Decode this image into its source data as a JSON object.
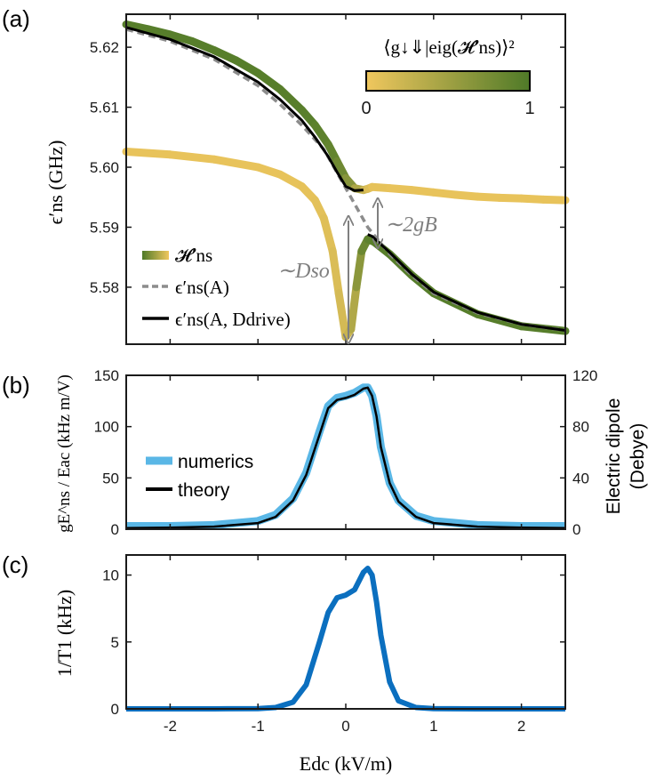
{
  "chart_data": [
    {
      "type": "line",
      "panel_label": "(a)",
      "xlim": [
        -2.5,
        2.5
      ],
      "ylim": [
        5.5705,
        5.6255
      ],
      "xticks": [
        -2,
        -1,
        0,
        1,
        2
      ],
      "xtick_labels": [
        "",
        "",
        "",
        "",
        ""
      ],
      "yticks": [
        5.58,
        5.59,
        5.6,
        5.61,
        5.62
      ],
      "ytick_labels": [
        "5.58",
        "5.59",
        "5.60",
        "5.61",
        "5.62"
      ],
      "ylabel": "ϵ′ns (GHz)",
      "colorbar": {
        "title": "⟨g↓⇓|eig(𝓗′ns)⟩²",
        "min_label": "0",
        "max_label": "1",
        "color_low": "#f0c75e",
        "color_high": "#4f7a28"
      },
      "legend": [
        {
          "label": "𝓗′ns",
          "style": "gradient"
        },
        {
          "label": "ϵ′ns(A)",
          "style": "dashed",
          "color": "#8c8c8c"
        },
        {
          "label": "ϵ′ns(A, Ddrive)",
          "style": "solid",
          "color": "#000000"
        }
      ],
      "annotations": [
        {
          "text": "∼Dso"
        },
        {
          "text": "∼2gB"
        }
      ],
      "series": [
        {
          "role": "upper-branch",
          "x": [
            -2.5,
            -2.25,
            -2.0,
            -1.75,
            -1.5,
            -1.25,
            -1.0,
            -0.75,
            -0.5,
            -0.35,
            -0.2,
            -0.1,
            0.0,
            0.1,
            0.2,
            0.25,
            0.3,
            0.5,
            0.75,
            1.0,
            1.25,
            1.5,
            1.75,
            2.0,
            2.25,
            2.5
          ],
          "y": [
            5.6238,
            5.623,
            5.6221,
            5.621,
            5.6195,
            5.6178,
            5.6157,
            5.613,
            5.6095,
            5.607,
            5.6038,
            5.601,
            5.5982,
            5.5965,
            5.5962,
            5.5964,
            5.5967,
            5.5965,
            5.5962,
            5.5958,
            5.5954,
            5.5951,
            5.5949,
            5.5948,
            5.5946,
            5.5945
          ],
          "weight": [
            0.95,
            0.95,
            0.95,
            0.95,
            0.95,
            0.95,
            0.95,
            0.95,
            0.94,
            0.93,
            0.9,
            0.85,
            0.75,
            0.55,
            0.3,
            0.15,
            0.08,
            0.05,
            0.05,
            0.05,
            0.05,
            0.05,
            0.05,
            0.05,
            0.05,
            0.05
          ]
        },
        {
          "role": "lower-branch",
          "x": [
            -2.5,
            -2.0,
            -1.5,
            -1.0,
            -0.75,
            -0.5,
            -0.35,
            -0.25,
            -0.15,
            -0.08,
            0.0,
            0.06,
            0.12,
            0.18,
            0.25,
            0.32,
            0.5,
            0.75,
            1.0,
            1.5,
            2.0,
            2.5
          ],
          "y": [
            5.6026,
            5.6021,
            5.6013,
            5.6,
            5.5988,
            5.5968,
            5.5945,
            5.5915,
            5.586,
            5.579,
            5.5717,
            5.573,
            5.58,
            5.586,
            5.588,
            5.5876,
            5.5855,
            5.582,
            5.579,
            5.5755,
            5.5735,
            5.5727
          ],
          "weight": [
            0.05,
            0.05,
            0.05,
            0.05,
            0.05,
            0.06,
            0.07,
            0.09,
            0.12,
            0.15,
            0.2,
            0.3,
            0.5,
            0.75,
            0.9,
            0.93,
            0.95,
            0.95,
            0.95,
            0.95,
            0.95,
            0.95
          ]
        },
        {
          "name": "ϵ′ns(A)",
          "style": "dashed",
          "x": [
            -2.5,
            -2.0,
            -1.5,
            -1.0,
            -0.75,
            -0.5,
            -0.25,
            0.0,
            0.25,
            0.5,
            0.75,
            1.0,
            1.5,
            2.0,
            2.5
          ],
          "y": [
            5.623,
            5.621,
            5.618,
            5.6136,
            5.6105,
            5.607,
            5.603,
            5.5965,
            5.59,
            5.5855,
            5.582,
            5.579,
            5.5757,
            5.5738,
            5.5728
          ]
        },
        {
          "name": "ϵ′ns(A, Ddrive)",
          "style": "solid",
          "x": [
            -2.5,
            -2.0,
            -1.5,
            -1.0,
            -0.75,
            -0.5,
            -0.35,
            -0.2,
            -0.1,
            0.0,
            0.1,
            0.2,
            0.25,
            0.3,
            0.5,
            0.75,
            1.0,
            1.5,
            2.0,
            2.5
          ],
          "y": [
            5.6233,
            5.6213,
            5.6184,
            5.6142,
            5.6113,
            5.6078,
            5.605,
            5.6018,
            5.5992,
            5.5968,
            5.5961,
            5.5962,
            5.5888,
            5.5885,
            5.5858,
            5.5822,
            5.5792,
            5.5758,
            5.5738,
            5.5728
          ]
        }
      ]
    },
    {
      "type": "line",
      "panel_label": "(b)",
      "xlim": [
        -2.5,
        2.5
      ],
      "ylim": [
        0,
        150
      ],
      "xticks": [
        -2,
        -1,
        0,
        1,
        2
      ],
      "xtick_labels": [
        "",
        "",
        "",
        "",
        ""
      ],
      "yticks": [
        0,
        50,
        100,
        150
      ],
      "ytick_labels": [
        "0",
        "50",
        "100",
        "150"
      ],
      "ylabel": "gE^ns / Eac (kHz m/V)",
      "right_axis": {
        "ylim": [
          0,
          120
        ],
        "yticks": [
          0,
          40,
          80,
          120
        ],
        "ytick_labels": [
          "0",
          "40",
          "80",
          "120"
        ],
        "ylabel_line1": "Electric dipole",
        "ylabel_line2": "(Debye)"
      },
      "legend": [
        {
          "label": "numerics",
          "color": "#5ab7e6"
        },
        {
          "label": "theory",
          "color": "#000000"
        }
      ],
      "x": [
        -2.5,
        -2.0,
        -1.5,
        -1.0,
        -0.8,
        -0.6,
        -0.45,
        -0.3,
        -0.2,
        -0.1,
        0.0,
        0.1,
        0.2,
        0.25,
        0.3,
        0.35,
        0.4,
        0.5,
        0.6,
        0.8,
        1.0,
        1.5,
        2.0,
        2.5
      ],
      "series": [
        {
          "name": "numerics",
          "color": "#5ab7e6",
          "values": [
            3,
            3,
            4,
            8,
            14,
            30,
            55,
            95,
            120,
            128,
            130,
            133,
            138,
            138,
            130,
            110,
            80,
            45,
            28,
            13,
            8,
            4,
            3,
            3
          ]
        },
        {
          "name": "theory",
          "color": "#000000",
          "values": [
            1,
            1.5,
            2.5,
            6,
            12,
            28,
            53,
            92,
            118,
            126,
            128,
            131,
            137,
            138,
            130,
            110,
            80,
            45,
            27,
            12,
            6,
            2.5,
            1.5,
            1
          ]
        }
      ]
    },
    {
      "type": "line",
      "panel_label": "(c)",
      "xlim": [
        -2.5,
        2.5
      ],
      "ylim": [
        0,
        11.5
      ],
      "xticks": [
        -2,
        -1,
        0,
        1,
        2
      ],
      "xtick_labels": [
        "-2",
        "-1",
        "0",
        "1",
        "2"
      ],
      "yticks": [
        0,
        5,
        10
      ],
      "ytick_labels": [
        "0",
        "5",
        "10"
      ],
      "ylabel": "1/T1 (kHz)",
      "xlabel": "Edc (kV/m)",
      "series": [
        {
          "name": "1/T1",
          "color": "#0b6fbf",
          "x": [
            -2.5,
            -1.5,
            -1.0,
            -0.8,
            -0.6,
            -0.45,
            -0.3,
            -0.2,
            -0.1,
            0.0,
            0.1,
            0.2,
            0.25,
            0.3,
            0.35,
            0.4,
            0.5,
            0.6,
            0.8,
            1.0,
            1.5,
            2.5
          ],
          "values": [
            0,
            0,
            0.02,
            0.1,
            0.5,
            1.8,
            5.0,
            7.2,
            8.3,
            8.5,
            8.9,
            10.2,
            10.5,
            10.0,
            8.0,
            5.5,
            2.0,
            0.6,
            0.1,
            0.02,
            0,
            0
          ]
        }
      ]
    }
  ]
}
